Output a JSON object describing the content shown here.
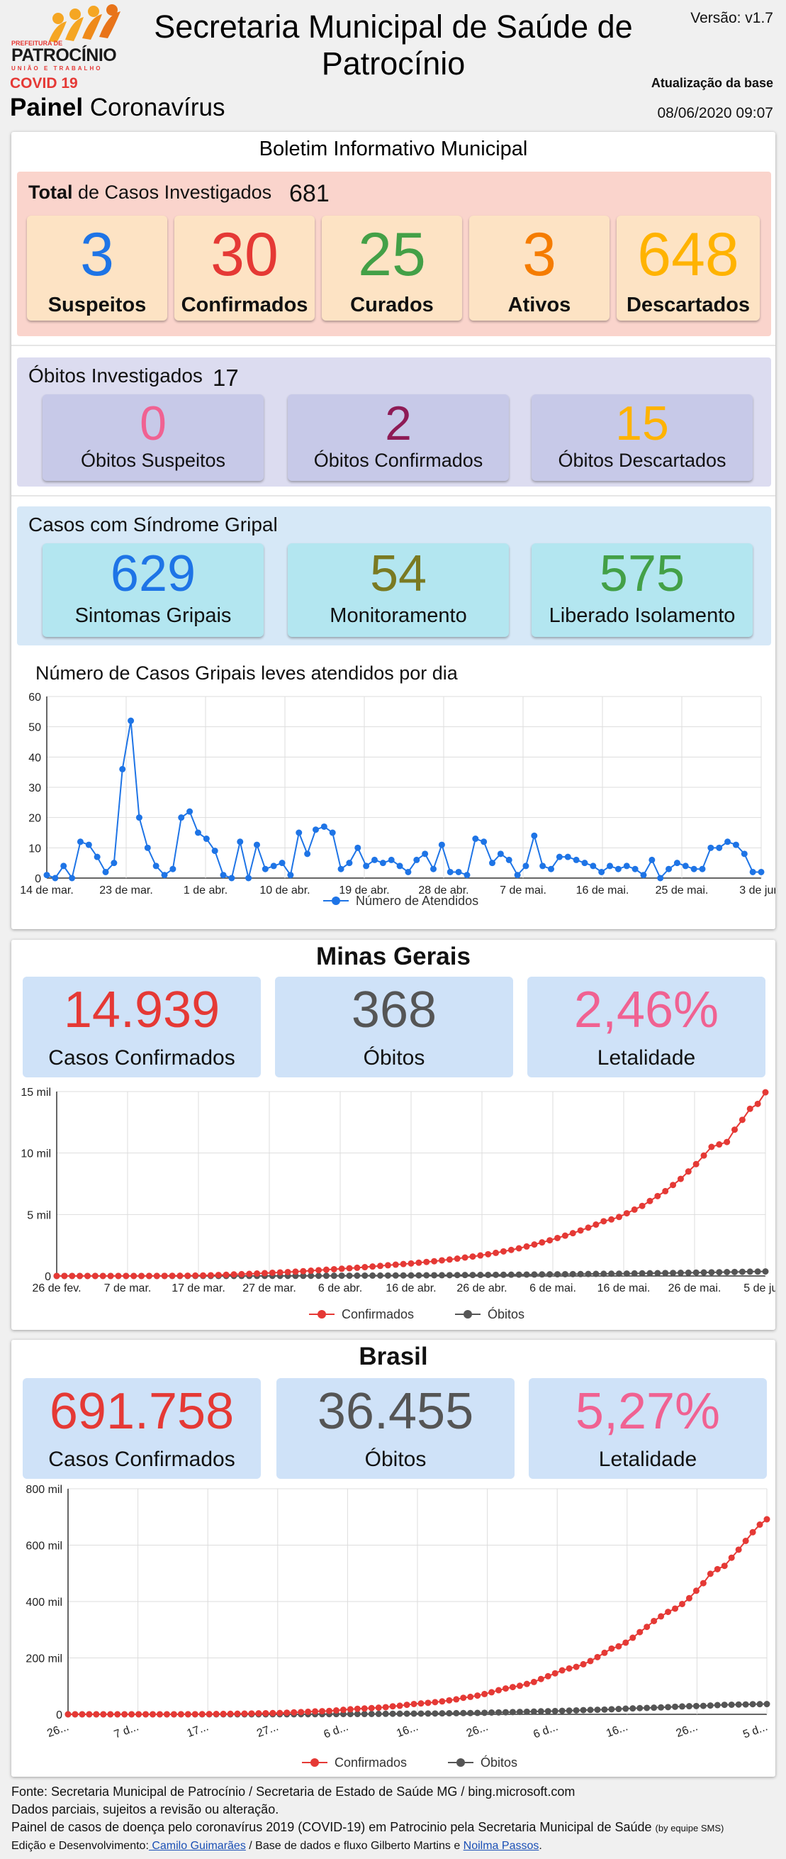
{
  "header": {
    "logo_prefeitura": "PREFEITURA DE",
    "logo_name": "PATROCÍNIO",
    "logo_tagline": "UNIÃO E TRABALHO",
    "covid_label": "COVID 19",
    "painel_bold": "Painel",
    "painel_rest": " Coronavírus",
    "title": "Secretaria Municipal de Saúde de Patrocínio",
    "versao": "Versão: v1.7",
    "atualizacao_label": "Atualização da base",
    "atualizacao_value": "08/06/2020 09:07"
  },
  "boletim": {
    "title": "Boletim Informativo Municipal",
    "total_label_bold": "Total",
    "total_label_rest": " de Casos Investigados",
    "total_value": "681",
    "cards": [
      {
        "value": "3",
        "label": "Suspeitos",
        "color": "#1e74e6"
      },
      {
        "value": "30",
        "label": "Confirmados",
        "color": "#e53935"
      },
      {
        "value": "25",
        "label": "Curados",
        "color": "#43a047"
      },
      {
        "value": "3",
        "label": "Ativos",
        "color": "#f57c00"
      },
      {
        "value": "648",
        "label": "Descartados",
        "color": "#ffb300"
      }
    ]
  },
  "obitos": {
    "label": "Óbitos Investigados",
    "value": "17",
    "cards": [
      {
        "value": "0",
        "label": "Óbitos Suspeitos",
        "color": "#f06292"
      },
      {
        "value": "2",
        "label": "Óbitos Confirmados",
        "color": "#8e1b55"
      },
      {
        "value": "15",
        "label": "Óbitos Descartados",
        "color": "#ffb300"
      }
    ]
  },
  "gripal": {
    "label": "Casos com Síndrome Gripal",
    "cards": [
      {
        "value": "629",
        "label": "Sintomas Gripais",
        "color": "#1e74e6"
      },
      {
        "value": "54",
        "label": "Monitoramento",
        "color": "#7a7a22"
      },
      {
        "value": "575",
        "label": "Liberado Isolamento",
        "color": "#43a047"
      }
    ]
  },
  "mg": {
    "title": "Minas Gerais",
    "cards": [
      {
        "value": "14.939",
        "label": "Casos Confirmados",
        "color": "#e53935"
      },
      {
        "value": "368",
        "label": "Óbitos",
        "color": "#555555"
      },
      {
        "value": "2,46%",
        "label": "Letalidade",
        "color": "#f06292"
      }
    ]
  },
  "brasil": {
    "title": "Brasil",
    "cards": [
      {
        "value": "691.758",
        "label": "Casos Confirmados",
        "color": "#e53935"
      },
      {
        "value": "36.455",
        "label": "Óbitos",
        "color": "#555555"
      },
      {
        "value": "5,27%",
        "label": "Letalidade",
        "color": "#f06292"
      }
    ]
  },
  "footer": {
    "line1": "Fonte: Secretaria Municipal de Patrocínio / Secretaria de Estado de Saúde MG / bing.microsoft.com",
    "line2": "Dados parciais, sujeitos a revisão ou alteração.",
    "line3": "Painel de casos de doença pelo coronavírus 2019 (COVID-19) em Patrocinio pela Secretaria Municipal de Saúde",
    "line3_small": "(by equipe SMS)",
    "line4_pre": "Edição e Desenvolvimento:",
    "line4_link1": " Camilo Guimarães",
    "line4_mid": " / Base de dados e fluxo Gilberto Martins e ",
    "line4_link2": "Noilma Passos",
    "line4_end": "."
  },
  "chart_data": [
    {
      "type": "line",
      "title": "Número de Casos Gripais leves atendidos por dia",
      "xlabel": "",
      "ylabel": "",
      "ylim": [
        0,
        60
      ],
      "yticks": [
        "0",
        "10",
        "20",
        "30",
        "40",
        "50",
        "60"
      ],
      "xticks": [
        "14 de mar.",
        "23 de mar.",
        "1 de abr.",
        "10 de abr.",
        "19 de abr.",
        "28 de abr.",
        "7 de mai.",
        "16 de mai.",
        "25 de mai.",
        "3 de jun."
      ],
      "legend": "bottom",
      "grid": true,
      "series": [
        {
          "name": "Número de Atendidos",
          "color": "#1e74e6",
          "values": [
            1,
            0,
            4,
            0,
            12,
            11,
            7,
            2,
            5,
            36,
            52,
            20,
            10,
            4,
            1,
            3,
            20,
            22,
            15,
            13,
            9,
            1,
            0,
            12,
            0,
            11,
            3,
            4,
            5,
            1,
            15,
            8,
            16,
            17,
            15,
            3,
            5,
            10,
            4,
            6,
            5,
            6,
            4,
            2,
            6,
            8,
            3,
            11,
            2,
            2,
            1,
            13,
            12,
            5,
            8,
            6,
            1,
            4,
            14,
            4,
            3,
            7,
            7,
            6,
            5,
            4,
            2,
            4,
            3,
            4,
            3,
            1,
            6,
            0,
            3,
            5,
            4,
            3,
            3,
            10,
            10,
            12,
            11,
            8,
            2,
            2
          ]
        }
      ]
    },
    {
      "type": "line",
      "title": "",
      "ylim": [
        0,
        15000
      ],
      "yticks": [
        "0",
        "5 mil",
        "10 mil",
        "15 mil"
      ],
      "xticks": [
        "26 de fev.",
        "7 de mar.",
        "17 de mar.",
        "27 de mar.",
        "6 de abr.",
        "16 de abr.",
        "26 de abr.",
        "6 de mai.",
        "16 de mai.",
        "26 de mai.",
        "5 de jun."
      ],
      "legend": "bottom",
      "grid": true,
      "series": [
        {
          "name": "Confirmados",
          "color": "#e53935",
          "values": [
            1,
            1,
            1,
            1,
            1,
            1,
            1,
            1,
            2,
            2,
            2,
            3,
            4,
            6,
            9,
            15,
            20,
            25,
            35,
            45,
            60,
            80,
            100,
            130,
            150,
            170,
            200,
            230,
            260,
            290,
            320,
            350,
            390,
            430,
            470,
            510,
            550,
            590,
            630,
            670,
            720,
            770,
            820,
            870,
            920,
            970,
            1020,
            1080,
            1140,
            1200,
            1270,
            1340,
            1410,
            1500,
            1580,
            1670,
            1770,
            1880,
            2000,
            2120,
            2250,
            2400,
            2560,
            2730,
            2900,
            3090,
            3280,
            3480,
            3700,
            3930,
            4180,
            4450,
            4600,
            4800,
            5100,
            5400,
            5700,
            6100,
            6500,
            6900,
            7400,
            7900,
            8500,
            9100,
            9800,
            10500,
            10700,
            10900,
            11900,
            12700,
            13600,
            14000,
            14939
          ]
        },
        {
          "name": "Óbitos",
          "color": "#555555",
          "values": [
            0,
            0,
            0,
            0,
            0,
            0,
            0,
            0,
            0,
            0,
            0,
            0,
            0,
            0,
            0,
            0,
            0,
            0,
            0,
            0,
            1,
            1,
            2,
            3,
            4,
            5,
            6,
            7,
            8,
            9,
            10,
            11,
            13,
            15,
            17,
            19,
            21,
            23,
            25,
            27,
            30,
            33,
            36,
            39,
            42,
            45,
            48,
            52,
            56,
            60,
            64,
            68,
            72,
            76,
            80,
            85,
            90,
            95,
            100,
            105,
            110,
            116,
            122,
            128,
            134,
            140,
            146,
            152,
            158,
            164,
            170,
            177,
            184,
            191,
            198,
            206,
            214,
            222,
            230,
            239,
            248,
            257,
            266,
            276,
            286,
            296,
            306,
            317,
            328,
            340,
            352,
            360,
            368
          ]
        }
      ]
    },
    {
      "type": "line",
      "title": "",
      "ylim": [
        0,
        800000
      ],
      "yticks": [
        "0",
        "200 mil",
        "400 mil",
        "600 mil",
        "800 mil"
      ],
      "xticks": [
        "26...",
        "7 d...",
        "17...",
        "27...",
        "6 d...",
        "16...",
        "26...",
        "6 d...",
        "16...",
        "26...",
        "5 d..."
      ],
      "legend": "bottom",
      "grid": true,
      "series": [
        {
          "name": "Confirmados",
          "color": "#e53935",
          "values": [
            1,
            1,
            1,
            2,
            2,
            3,
            4,
            8,
            13,
            20,
            25,
            34,
            52,
            77,
            98,
            121,
            200,
            291,
            428,
            621,
            904,
            1128,
            1546,
            1891,
            2201,
            2433,
            2915,
            3417,
            3904,
            4256,
            4661,
            5717,
            6880,
            7910,
            9056,
            10278,
            11130,
            12056,
            13717,
            15927,
            17857,
            19638,
            20727,
            22169,
            23430,
            25262,
            28320,
            30425,
            33682,
            36599,
            38654,
            40581,
            43079,
            45757,
            49492,
            52995,
            58509,
            61888,
            66501,
            71886,
            78162,
            85380,
            91589,
            96559,
            101147,
            107780,
            114715,
            125218,
            135106,
            145328,
            155939,
            162699,
            168331,
            177589,
            188974,
            202918,
            218223,
            233142,
            241080,
            254220,
            271628,
            291579,
            310087,
            330890,
            347398,
            363211,
            374898,
            391222,
            411821,
            438238,
            465166,
            498440,
            514849,
            526447,
            555383,
            584016,
            614941,
            645771,
            672846,
            691758
          ]
        },
        {
          "name": "Óbitos",
          "color": "#555555",
          "values": [
            0,
            0,
            0,
            0,
            0,
            0,
            0,
            0,
            0,
            0,
            0,
            0,
            0,
            0,
            0,
            0,
            1,
            4,
            7,
            11,
            18,
            25,
            34,
            46,
            57,
            77,
            92,
            114,
            136,
            159,
            201,
            240,
            299,
            359,
            432,
            486,
            553,
            667,
            800,
            941,
            1056,
            1124,
            1223,
            1328,
            1532,
            1736,
            1924,
            2141,
            2347,
            2462,
            2575,
            2741,
            2906,
            3313,
            3670,
            4016,
            4271,
            4543,
            5017,
            5466,
            6329,
            6750,
            7321,
            7921,
            8536,
            9146,
            9897,
            10627,
            11123,
            11519,
            12400,
            13149,
            13993,
            14817,
            15633,
            16118,
            16792,
            17971,
            18859,
            20047,
            21048,
            22013,
            22666,
            23473,
            24512,
            25598,
            26754,
            27878,
            28834,
            29314,
            29937,
            31199,
            32548,
            33689,
            34021,
            34716,
            35026,
            35930,
            36100,
            36455
          ]
        }
      ]
    }
  ]
}
